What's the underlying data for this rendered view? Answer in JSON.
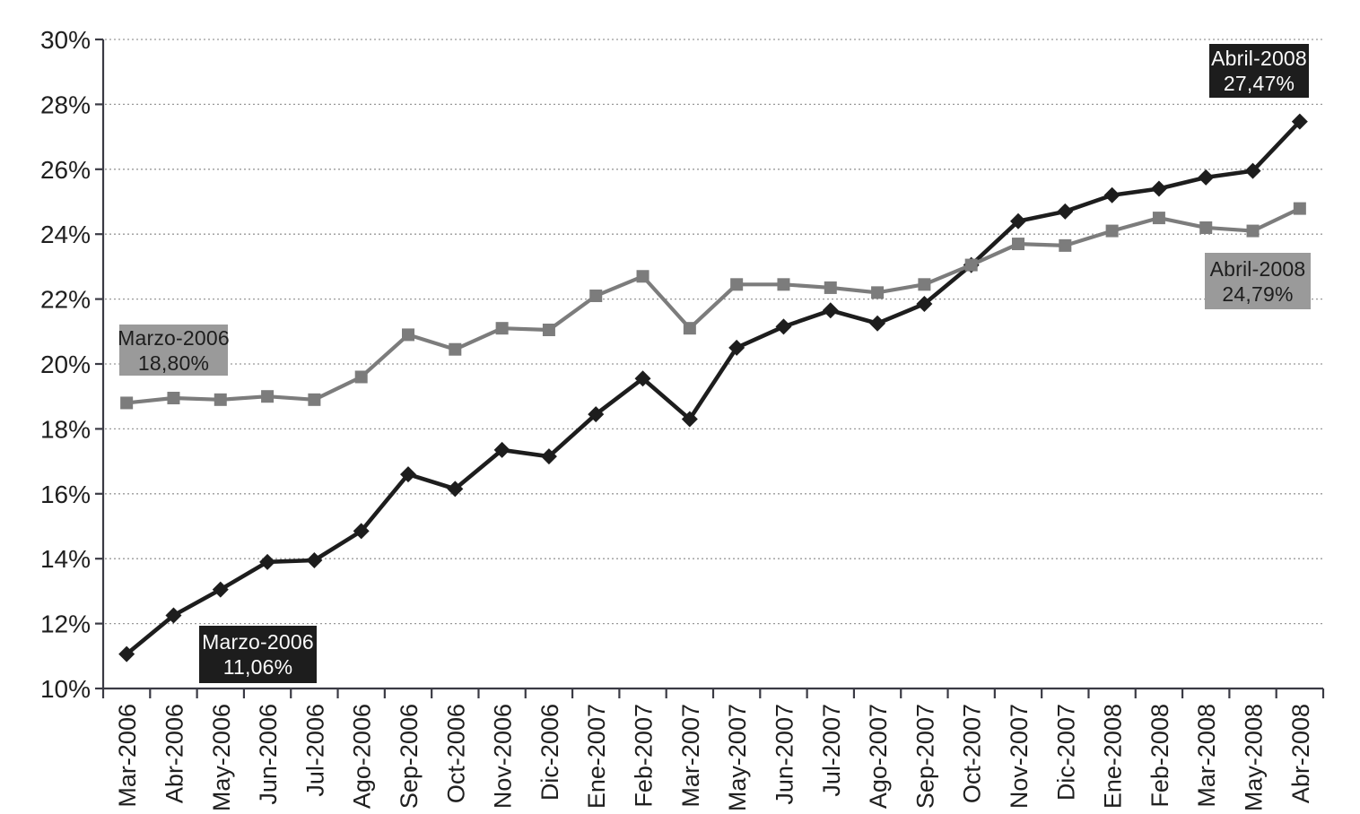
{
  "page": {
    "background": "#ffffff",
    "text_color": "#1f1f1f"
  },
  "chart_data": {
    "type": "line",
    "title": "",
    "categories": [
      "Mar-2006",
      "Abr-2006",
      "May-2006",
      "Jun-2006",
      "Jul-2006",
      "Ago-2006",
      "Sep-2006",
      "Oct-2006",
      "Nov-2006",
      "Dic-2006",
      "Ene-2007",
      "Feb-2007",
      "Mar-2007",
      "May-2007",
      "Jun-2007",
      "Jul-2007",
      "Ago-2007",
      "Sep-2007",
      "Oct-2007",
      "Nov-2007",
      "Dic-2007",
      "Ene-2008",
      "Feb-2008",
      "Mar-2008",
      "May-2008",
      "Abr-2008"
    ],
    "series": [
      {
        "name": "black-diamond-series",
        "marker": "diamond",
        "color": "#1d1d1d",
        "values": [
          11.06,
          12.25,
          13.05,
          13.9,
          13.95,
          14.85,
          16.6,
          16.15,
          17.35,
          17.15,
          18.45,
          19.55,
          18.3,
          20.5,
          21.15,
          21.65,
          21.25,
          21.85,
          23.05,
          24.4,
          24.7,
          25.2,
          25.4,
          25.75,
          25.95,
          27.47
        ]
      },
      {
        "name": "gray-square-series",
        "marker": "square",
        "color": "#7c7c7c",
        "values": [
          18.8,
          18.95,
          18.9,
          19.0,
          18.9,
          19.6,
          20.9,
          20.45,
          21.1,
          21.05,
          22.1,
          22.7,
          21.1,
          22.45,
          22.45,
          22.35,
          22.2,
          22.45,
          23.05,
          23.7,
          23.65,
          24.1,
          24.5,
          24.2,
          24.1,
          24.79
        ]
      }
    ],
    "ylim": [
      10,
      30
    ],
    "ytick_step": 2,
    "ytick_labels": [
      "30%",
      "28%",
      "26%",
      "24%",
      "22%",
      "20%",
      "18%",
      "16%",
      "14%",
      "12%",
      "10%"
    ],
    "grid": "horizontal-dotted",
    "grid_color": "#999999",
    "axis_color": "#3a3a44",
    "legend_position": "none",
    "annotations": [
      {
        "line1": "Marzo-2006",
        "line2": "18,80%",
        "style": "gray",
        "refers_to": "gray-square-series first point"
      },
      {
        "line1": "Marzo-2006",
        "line2": "11,06%",
        "style": "black",
        "refers_to": "black-diamond-series first point"
      },
      {
        "line1": "Abril-2008",
        "line2": "27,47%",
        "style": "black",
        "refers_to": "black-diamond-series last point"
      },
      {
        "line1": "Abril-2008",
        "line2": "24,79%",
        "style": "gray",
        "refers_to": "gray-square-series last point"
      }
    ]
  }
}
